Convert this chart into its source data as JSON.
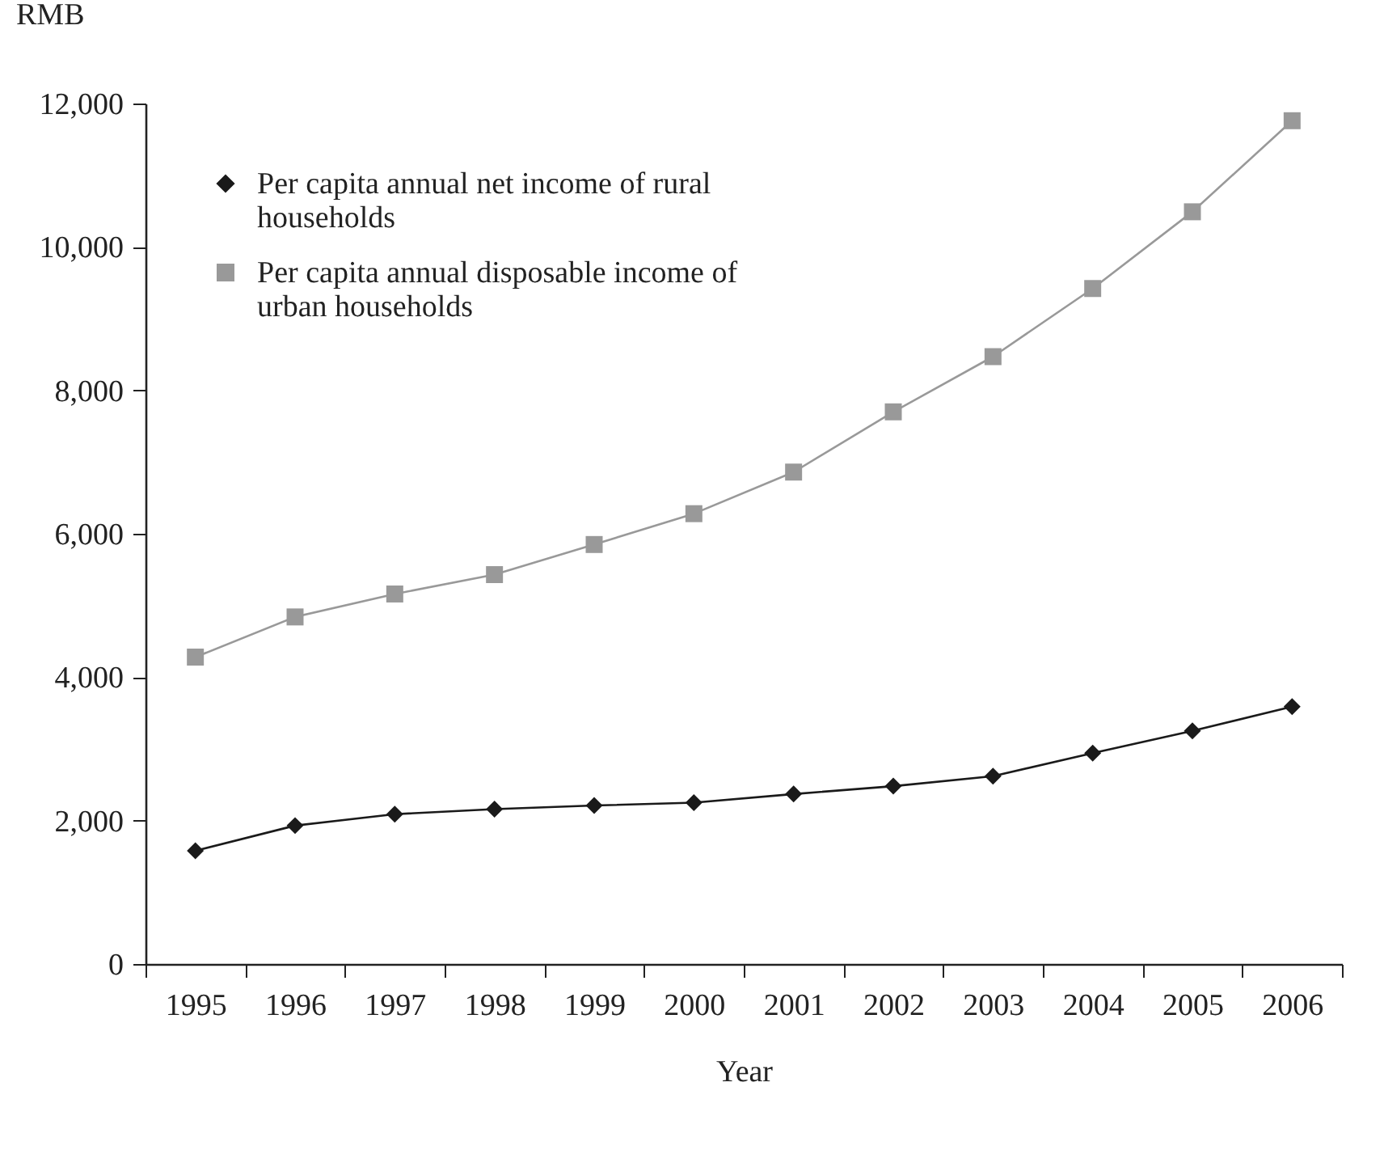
{
  "chart_data": {
    "type": "line",
    "xlabel": "Year",
    "ylabel": "RMB",
    "categories": [
      "1995",
      "1996",
      "1997",
      "1998",
      "1999",
      "2000",
      "2001",
      "2002",
      "2003",
      "2004",
      "2005",
      "2006"
    ],
    "series": [
      {
        "name": "Per capita annual net income of rural households",
        "color": "#1a1a1a",
        "marker": "diamond",
        "values": [
          1580,
          1930,
          2090,
          2160,
          2210,
          2250,
          2370,
          2480,
          2620,
          2940,
          3250,
          3590
        ]
      },
      {
        "name": "Per capita annual disposable income of urban households",
        "color": "#999999",
        "marker": "square",
        "values": [
          4280,
          4840,
          5160,
          5430,
          5850,
          6280,
          6860,
          7700,
          8470,
          9420,
          10490,
          11760
        ]
      }
    ],
    "ylim": [
      0,
      12000
    ],
    "yticks": [
      {
        "value": 0,
        "label": "0"
      },
      {
        "value": 2000,
        "label": "2,000"
      },
      {
        "value": 4000,
        "label": "4,000"
      },
      {
        "value": 6000,
        "label": "6,000"
      },
      {
        "value": 8000,
        "label": "8,000"
      },
      {
        "value": 10000,
        "label": "10,000"
      },
      {
        "value": 12000,
        "label": "12,000"
      }
    ],
    "grid": false,
    "legend": "top left",
    "line_style": "solid"
  }
}
